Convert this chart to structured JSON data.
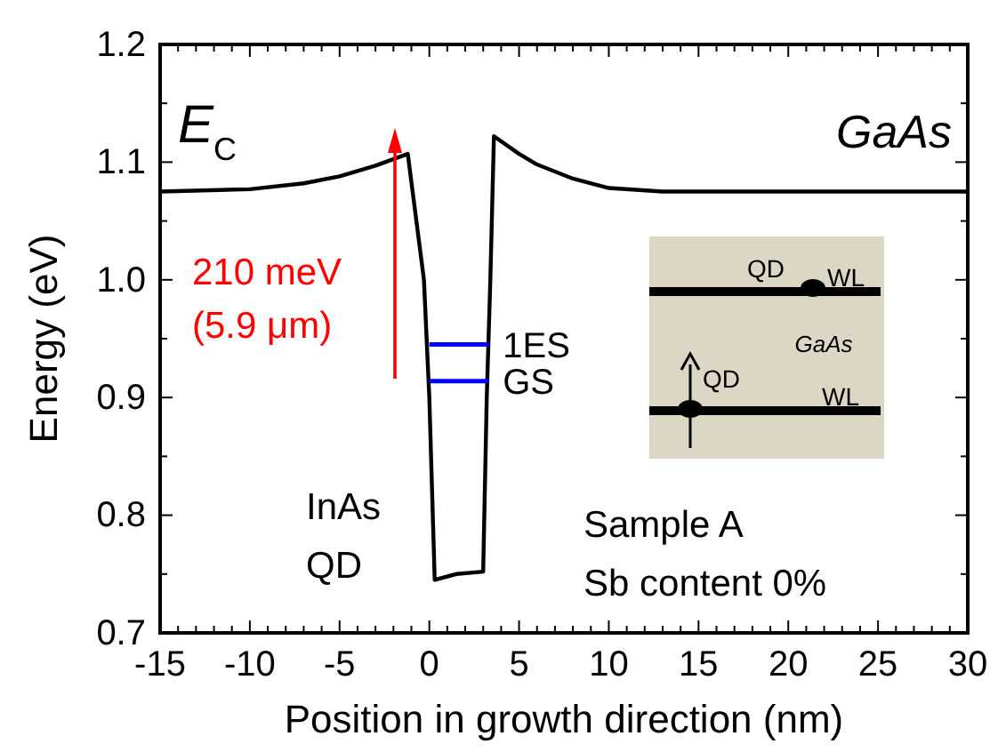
{
  "chart_data": {
    "type": "line",
    "xlabel": "Position in growth direction (nm)",
    "ylabel": "Energy (eV)",
    "xlim": [
      -15,
      30
    ],
    "ylim": [
      0.7,
      1.2
    ],
    "xticks": [
      -15,
      -10,
      -5,
      0,
      5,
      10,
      15,
      20,
      25,
      30
    ],
    "yticks": [
      0.7,
      0.8,
      0.9,
      {
        "value": 1,
        "label": "1.0"
      },
      1.1,
      1.2
    ],
    "series": [
      {
        "color": "#000000",
        "x": [
          -15,
          -10,
          -7,
          -5,
          -3,
          -1.2,
          -0.3,
          0,
          0.3,
          1.5,
          3,
          3.2,
          3.4,
          3.6,
          5,
          6,
          8,
          10,
          13,
          30
        ],
        "values": [
          1.075,
          1.077,
          1.082,
          1.088,
          1.097,
          1.107,
          1,
          0.9,
          0.745,
          0.75,
          0.752,
          0.9,
          1,
          1.122,
          1.107,
          1.098,
          1.086,
          1.078,
          1.075,
          1.075
        ]
      },
      {
        "name": "1ES",
        "color": "#0000ff",
        "x": [
          0,
          3.3
        ],
        "values": [
          0.945,
          0.945
        ]
      },
      {
        "name": "GS",
        "color": "#0000ff",
        "x": [
          0,
          3.3
        ],
        "values": [
          0.914,
          0.914
        ]
      }
    ],
    "annotations": [
      "E$_{C}$",
      "GaAs",
      "210 meV",
      "(5.9 μm)",
      "InAs",
      "QD",
      "Sample A",
      "Sb content 0%",
      "QD",
      "WL",
      "GaAs",
      "QD",
      "WL"
    ],
    "legend": false
  }
}
